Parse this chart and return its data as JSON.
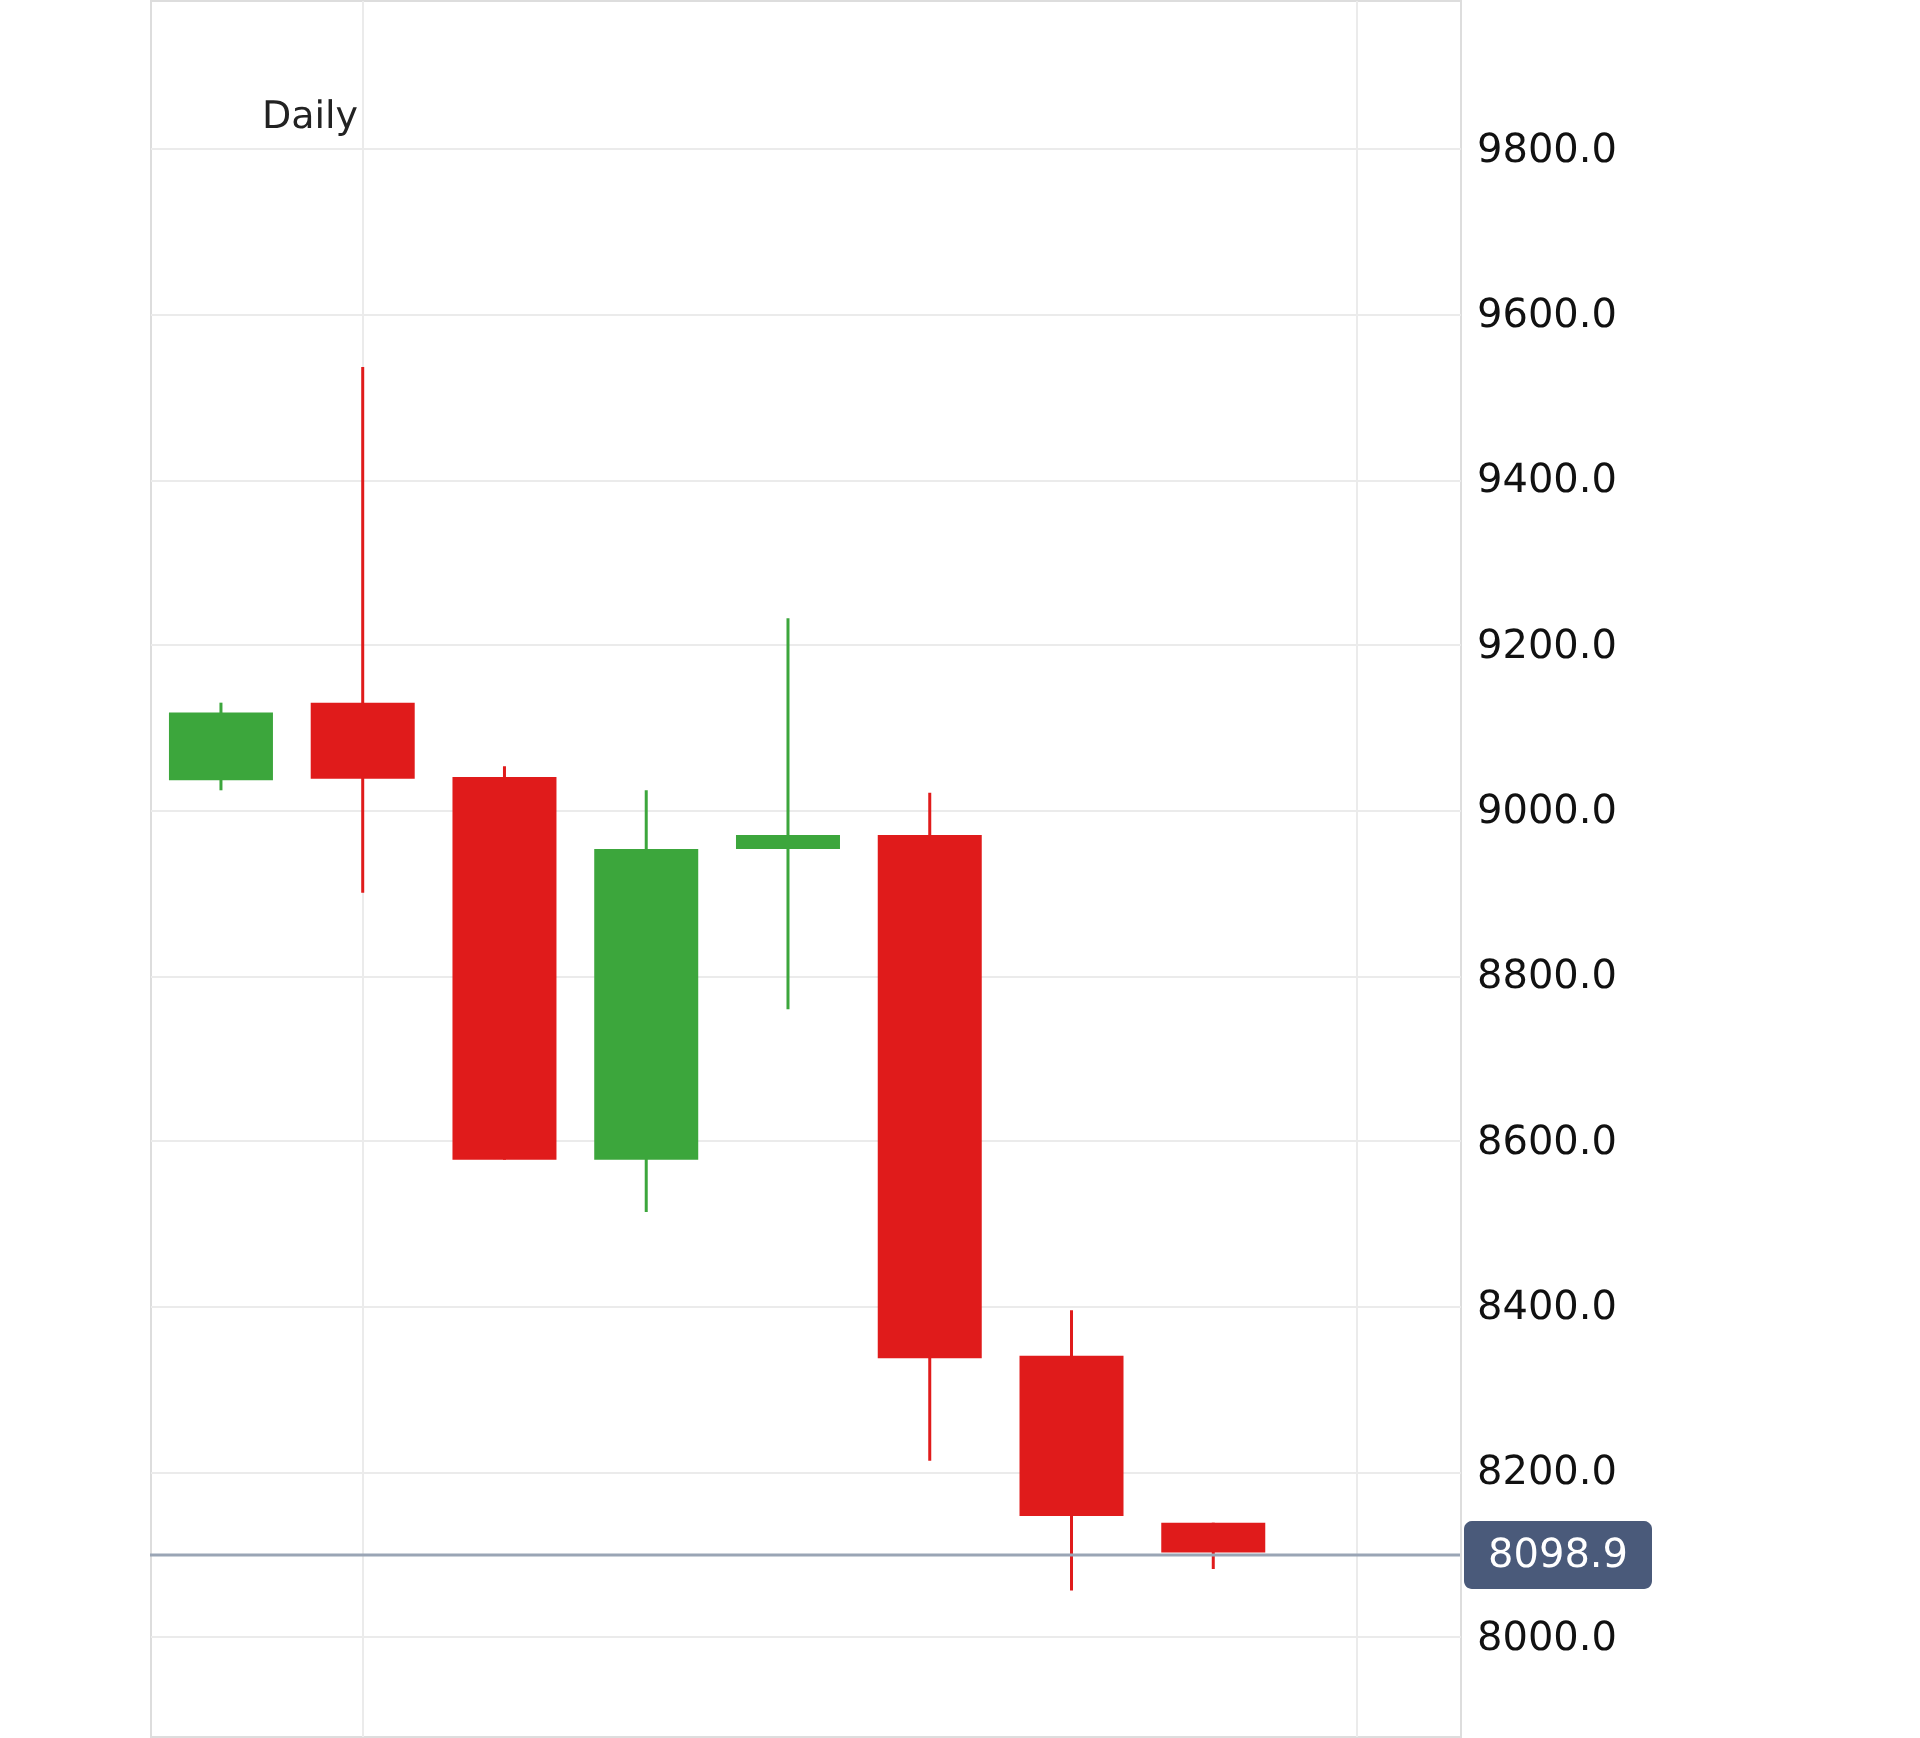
{
  "chart_data": {
    "type": "candlestick",
    "categories": [
      null,
      null,
      null,
      null,
      null,
      null,
      null,
      null
    ],
    "ohlc": [
      [
        9036,
        9130,
        9024,
        9118
      ],
      [
        9130,
        9536,
        8900,
        9038
      ],
      [
        9040,
        9053,
        8577,
        8577
      ],
      [
        8577,
        9024,
        8514,
        8953
      ],
      [
        8953,
        9232,
        8759,
        8970
      ],
      [
        8970,
        9021,
        8213,
        8337
      ],
      [
        8340,
        8395,
        8056,
        8146
      ],
      [
        8138,
        8138,
        8082,
        8102
      ]
    ],
    "colors": [
      "#3ca63c",
      "#e01b1b",
      "#e01b1b",
      "#3ca63c",
      "#3ca63c",
      "#e01b1b",
      "#e01b1b",
      "#e01b1b"
    ],
    "ylim": [
      7880,
      9980
    ],
    "yticks": [
      {
        "value": 8000,
        "label": "8000.0"
      },
      {
        "value": 8200,
        "label": "8200.0"
      },
      {
        "value": 8400,
        "label": "8400.0"
      },
      {
        "value": 8600,
        "label": "8600.0"
      },
      {
        "value": 8800,
        "label": "8800.0"
      },
      {
        "value": 9000,
        "label": "9000.0"
      },
      {
        "value": 9200,
        "label": "9200.0"
      },
      {
        "value": 9400,
        "label": "9400.0"
      },
      {
        "value": 9600,
        "label": "9600.0"
      },
      {
        "value": 9800,
        "label": "9800.0"
      }
    ],
    "grid": true,
    "ref_lines": [
      {
        "axis": "y",
        "value": 8098.9,
        "label": "8098.9",
        "color": "#9aa5b5"
      }
    ],
    "annotations": [
      "Daily"
    ]
  }
}
